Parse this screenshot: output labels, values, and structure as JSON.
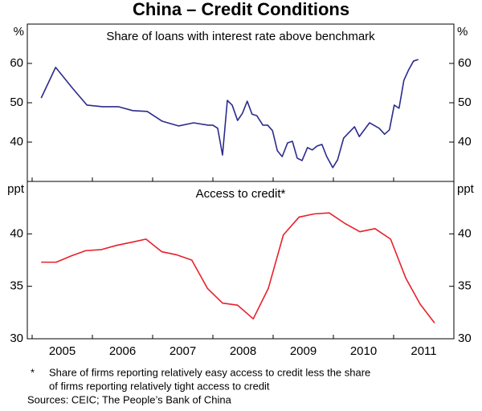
{
  "title": "China – Credit Conditions",
  "footnote": {
    "marker": "*",
    "lines": [
      "Share of firms reporting relatively easy access to credit less the share",
      "of firms reporting relatively tight access to credit"
    ]
  },
  "sources": "Sources: CEIC; The People’s Bank of China",
  "chart_data": [
    {
      "type": "line",
      "title": "Share of loans with interest rate above benchmark",
      "y_unit": "%",
      "xlim": [
        2004.92,
        2012
      ],
      "ylim": [
        30,
        70
      ],
      "yticks": [
        40,
        50,
        60
      ],
      "x": [
        2005.15,
        2005.39,
        2005.67,
        2005.91,
        2006.17,
        2006.43,
        2006.67,
        2006.91,
        2007.16,
        2007.43,
        2007.68,
        2007.92,
        2008.0,
        2008.08,
        2008.16,
        2008.24,
        2008.32,
        2008.41,
        2008.49,
        2008.57,
        2008.65,
        2008.73,
        2008.83,
        2008.91,
        2008.99,
        2009.07,
        2009.15,
        2009.24,
        2009.32,
        2009.4,
        2009.48,
        2009.57,
        2009.65,
        2009.73,
        2009.81,
        2009.89,
        2009.99,
        2010.07,
        2010.17,
        2010.35,
        2010.43,
        2010.6,
        2010.76,
        2010.85,
        2010.93,
        2011.01,
        2011.09,
        2011.17,
        2011.25,
        2011.33,
        2011.41
      ],
      "series": [
        {
          "color": "#2b2b8c",
          "values": [
            51.2,
            59.0,
            53.7,
            49.4,
            49.0,
            49.0,
            48.0,
            47.8,
            45.3,
            44.1,
            44.9,
            44.3,
            44.3,
            43.5,
            36.7,
            50.6,
            49.4,
            45.5,
            47.3,
            50.4,
            47.1,
            46.7,
            44.3,
            44.3,
            42.9,
            37.8,
            36.3,
            39.8,
            40.2,
            35.9,
            35.3,
            38.6,
            38.0,
            39.0,
            39.4,
            36.3,
            33.5,
            35.5,
            41.0,
            43.9,
            41.4,
            44.9,
            43.5,
            42.0,
            43.1,
            49.4,
            48.6,
            55.7,
            58.4,
            60.6,
            61.0
          ]
        }
      ]
    },
    {
      "type": "line",
      "title": "Access to credit*",
      "y_unit": "ppt",
      "xlim": [
        2004.92,
        2012
      ],
      "ylim": [
        30,
        45
      ],
      "yticks": [
        30,
        35,
        40
      ],
      "xticks": [
        {
          "value": 2005.5,
          "label": "2005"
        },
        {
          "value": 2006.5,
          "label": "2006"
        },
        {
          "value": 2007.5,
          "label": "2007"
        },
        {
          "value": 2008.5,
          "label": "2008"
        },
        {
          "value": 2009.5,
          "label": "2009"
        },
        {
          "value": 2010.5,
          "label": "2010"
        },
        {
          "value": 2011.5,
          "label": "2011"
        }
      ],
      "x": [
        2005.15,
        2005.4,
        2005.65,
        2005.89,
        2006.15,
        2006.4,
        2006.65,
        2006.89,
        2007.15,
        2007.4,
        2007.65,
        2007.91,
        2008.16,
        2008.41,
        2008.67,
        2008.92,
        2009.17,
        2009.43,
        2009.68,
        2009.93,
        2010.19,
        2010.44,
        2010.69,
        2010.95,
        2011.2,
        2011.44,
        2011.68
      ],
      "series": [
        {
          "color": "#e8202a",
          "values": [
            37.3,
            37.3,
            37.9,
            38.4,
            38.5,
            38.9,
            39.2,
            39.5,
            38.3,
            38.0,
            37.5,
            34.8,
            33.4,
            33.2,
            31.9,
            34.8,
            39.9,
            41.6,
            41.9,
            42.0,
            41.0,
            40.2,
            40.5,
            39.5,
            35.8,
            33.3,
            31.5
          ]
        }
      ]
    }
  ]
}
